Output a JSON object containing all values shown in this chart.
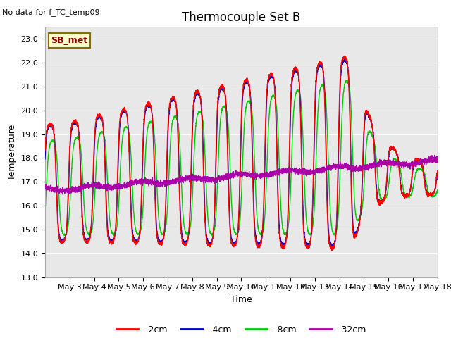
{
  "title": "Thermocouple Set B",
  "no_data_text": "No data for f_TC_temp09",
  "xlabel": "Time",
  "ylabel": "Temperature",
  "xlim_days": [
    2.0,
    18.0
  ],
  "ylim": [
    13.0,
    23.5
  ],
  "yticks": [
    13.0,
    14.0,
    15.0,
    16.0,
    17.0,
    18.0,
    19.0,
    20.0,
    21.0,
    22.0,
    23.0
  ],
  "xtick_labels": [
    "May 3",
    "May 4",
    "May 5",
    "May 6",
    "May 7",
    "May 8",
    "May 9",
    "May 10",
    "May 11",
    "May 12",
    "May 13",
    "May 14",
    "May 15",
    "May 16",
    "May 17",
    "May 18"
  ],
  "legend_label_box": "SB_met",
  "series_colors": [
    "#ff0000",
    "#0000cc",
    "#00cc00",
    "#aa00aa"
  ],
  "series_labels": [
    "-2cm",
    "-4cm",
    "-8cm",
    "-32cm"
  ],
  "bg_color": "#e8e8e8",
  "fig_bg": "#ffffff",
  "linewidth": 1.0,
  "title_fontsize": 12,
  "axis_fontsize": 9,
  "tick_fontsize": 8
}
